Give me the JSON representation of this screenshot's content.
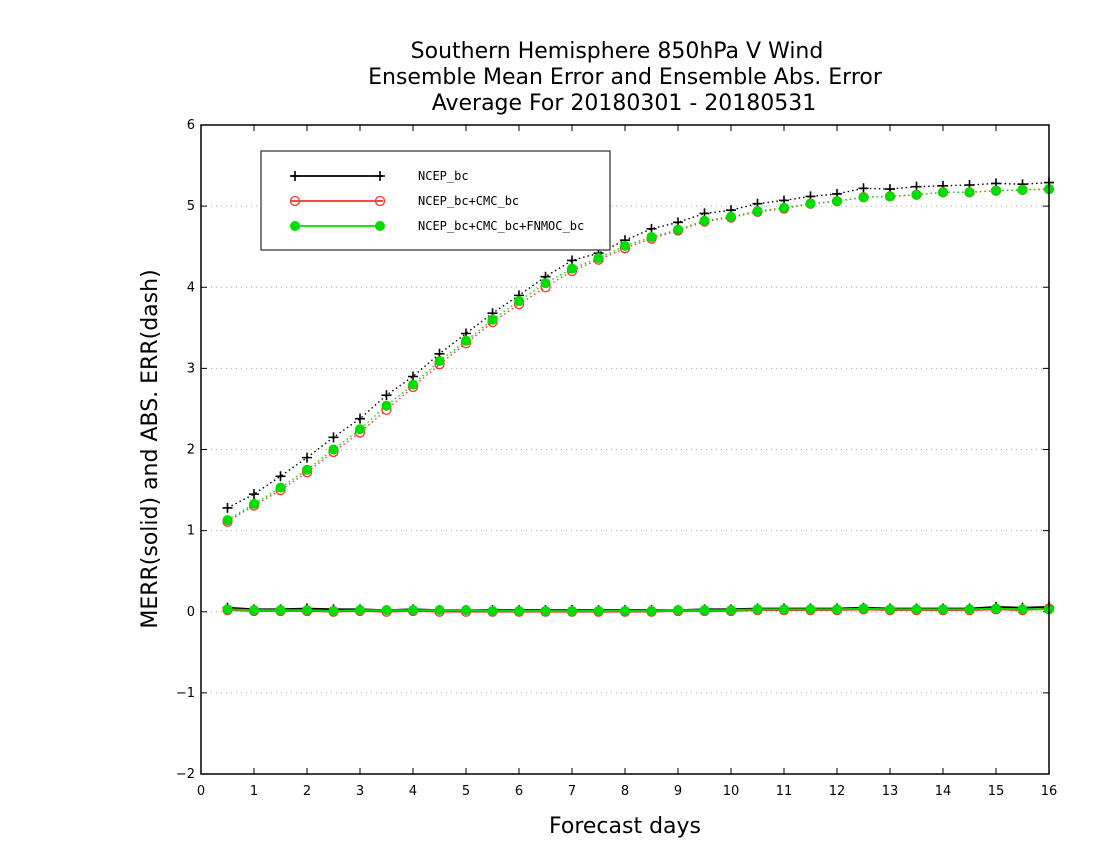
{
  "chart_data": {
    "type": "line",
    "title": [
      "Southern Hemisphere 850hPa V Wind",
      "Ensemble Mean Error and Ensemble Abs. Error",
      "Average For 20180301 - 20180531"
    ],
    "xlabel": "Forecast days",
    "ylabel": "MERR(solid) and ABS. ERR(dash)",
    "xlim": [
      0,
      16
    ],
    "ylim": [
      -2,
      6
    ],
    "xticks": [
      0,
      1,
      2,
      3,
      4,
      5,
      6,
      7,
      8,
      9,
      10,
      11,
      12,
      13,
      14,
      15,
      16
    ],
    "yticks": [
      -2,
      -1,
      0,
      1,
      2,
      3,
      4,
      5,
      6
    ],
    "ytick_labels": [
      "−2",
      "−1",
      "0",
      "1",
      "2",
      "3",
      "4",
      "5",
      "6"
    ],
    "grid": "dotted horizontal",
    "legend_position": "top-left",
    "x": [
      0.5,
      1,
      1.5,
      2,
      2.5,
      3,
      3.5,
      4,
      4.5,
      5,
      5.5,
      6,
      6.5,
      7,
      7.5,
      8,
      8.5,
      9,
      9.5,
      10,
      10.5,
      11,
      11.5,
      12,
      12.5,
      13,
      13.5,
      14,
      14.5,
      15,
      15.5,
      16
    ],
    "series": [
      {
        "name": "NCEP_bc",
        "color": "#000000",
        "marker": "plus",
        "merr": [
          0.05,
          0.03,
          0.03,
          0.04,
          0.03,
          0.03,
          0.02,
          0.03,
          0.02,
          0.02,
          0.02,
          0.02,
          0.02,
          0.02,
          0.02,
          0.02,
          0.02,
          0.02,
          0.03,
          0.03,
          0.04,
          0.04,
          0.04,
          0.04,
          0.05,
          0.04,
          0.04,
          0.04,
          0.04,
          0.06,
          0.05,
          0.06
        ],
        "abs_err": [
          1.28,
          1.45,
          1.67,
          1.9,
          2.15,
          2.38,
          2.67,
          2.9,
          3.18,
          3.43,
          3.68,
          3.9,
          4.13,
          4.33,
          4.42,
          4.58,
          4.72,
          4.8,
          4.91,
          4.95,
          5.03,
          5.07,
          5.12,
          5.15,
          5.22,
          5.21,
          5.24,
          5.25,
          5.26,
          5.28,
          5.27,
          5.29
        ]
      },
      {
        "name": "NCEP_bc+CMC_bc",
        "color": "#ff3030",
        "marker": "open-circle",
        "merr": [
          0.02,
          0.01,
          0.01,
          0.01,
          0.0,
          0.01,
          0.0,
          0.01,
          0.0,
          0.0,
          0.0,
          0.0,
          0.0,
          0.0,
          0.0,
          0.0,
          0.0,
          0.01,
          0.01,
          0.01,
          0.02,
          0.02,
          0.02,
          0.02,
          0.03,
          0.02,
          0.02,
          0.02,
          0.02,
          0.03,
          0.02,
          0.04
        ],
        "abs_err": [
          1.11,
          1.31,
          1.5,
          1.72,
          1.97,
          2.21,
          2.49,
          2.77,
          3.05,
          3.31,
          3.57,
          3.79,
          4.0,
          4.2,
          4.34,
          4.48,
          4.6,
          4.7,
          4.81,
          4.86,
          4.93,
          4.97,
          5.03,
          5.06,
          5.11,
          5.12,
          5.14,
          5.17,
          5.17,
          5.19,
          5.2,
          5.21
        ]
      },
      {
        "name": "NCEP_bc+CMC_bc+FNMOC_bc",
        "color": "#00dd00",
        "marker": "filled-circle",
        "merr": [
          0.03,
          0.02,
          0.02,
          0.02,
          0.01,
          0.02,
          0.02,
          0.02,
          0.02,
          0.02,
          0.01,
          0.01,
          0.01,
          0.01,
          0.01,
          0.01,
          0.01,
          0.02,
          0.02,
          0.02,
          0.03,
          0.03,
          0.03,
          0.03,
          0.04,
          0.03,
          0.03,
          0.03,
          0.03,
          0.04,
          0.03,
          0.03
        ],
        "abs_err": [
          1.13,
          1.33,
          1.53,
          1.75,
          2.0,
          2.25,
          2.54,
          2.8,
          3.09,
          3.34,
          3.6,
          3.83,
          4.05,
          4.23,
          4.36,
          4.51,
          4.62,
          4.71,
          4.82,
          4.87,
          4.94,
          4.98,
          5.03,
          5.06,
          5.11,
          5.12,
          5.14,
          5.17,
          5.17,
          5.19,
          5.2,
          5.21
        ]
      }
    ]
  }
}
